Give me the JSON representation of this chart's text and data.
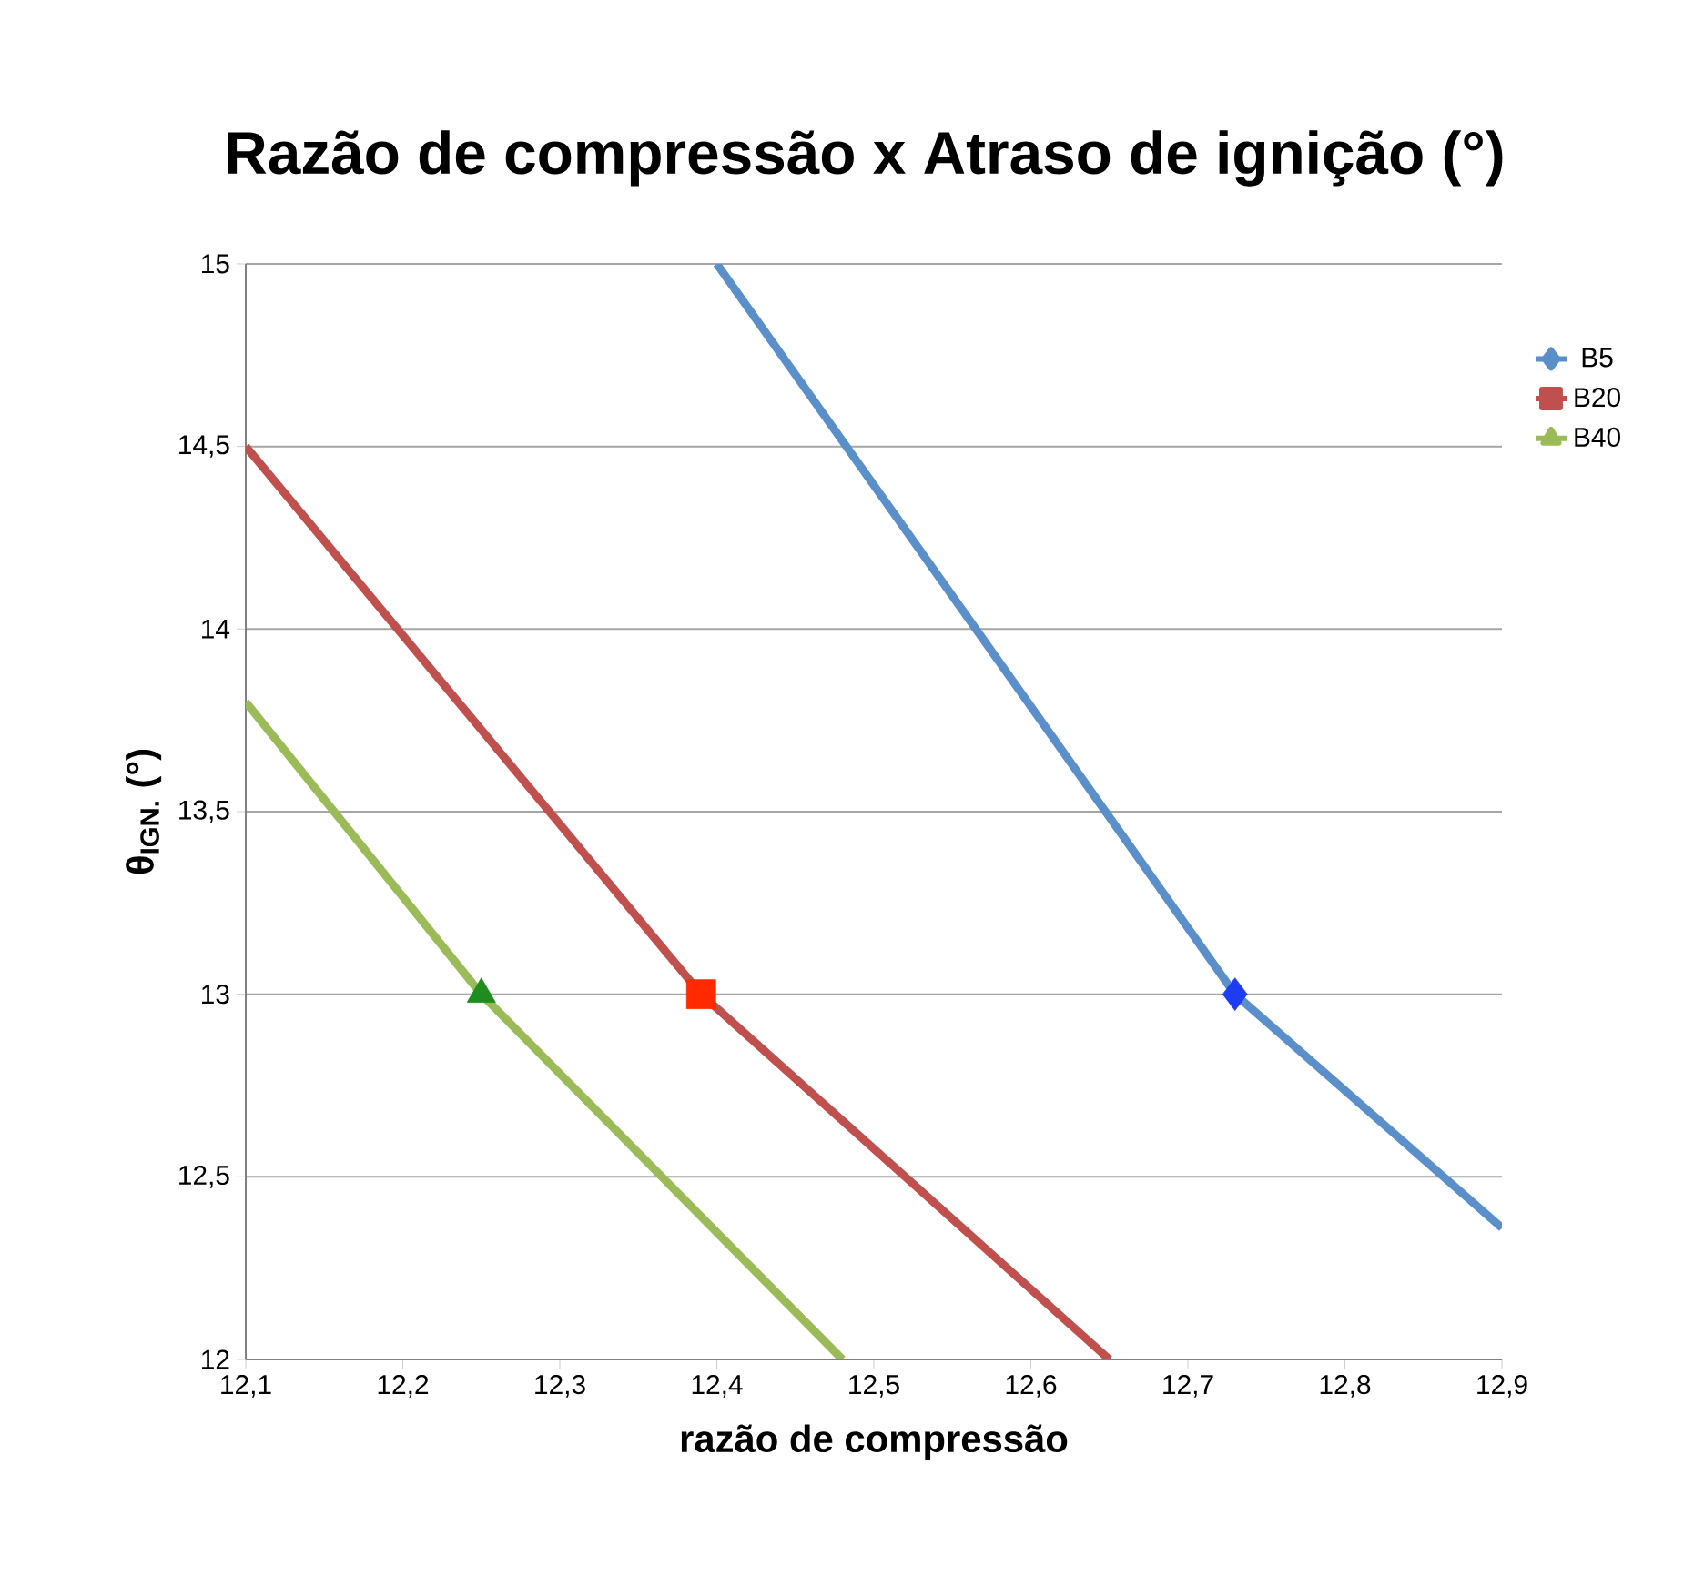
{
  "chart_data": {
    "type": "line",
    "title": "Razão de compressão x Atraso de ignição (°)",
    "xlabel": "razão de compressão",
    "ylabel": "θ$_{IGN.}$ (°)",
    "xlim": [
      12.1,
      12.9
    ],
    "xticks": [
      {
        "value": 12.1,
        "label": "12,1"
      },
      {
        "value": 12.2,
        "label": "12,2"
      },
      {
        "value": 12.3,
        "label": "12,3"
      },
      {
        "value": 12.4,
        "label": "12,4"
      },
      {
        "value": 12.5,
        "label": "12,5"
      },
      {
        "value": 12.6,
        "label": "12,6"
      },
      {
        "value": 12.7,
        "label": "12,7"
      },
      {
        "value": 12.8,
        "label": "12,8"
      },
      {
        "value": 12.9,
        "label": "12,9"
      }
    ],
    "ylim": [
      12,
      15
    ],
    "yticks": [
      12,
      {
        "value": 12.5,
        "label": "12,5"
      },
      13,
      {
        "value": 13.5,
        "label": "13,5"
      },
      14,
      {
        "value": 14.5,
        "label": "14,5"
      },
      15
    ],
    "grid": "y",
    "legend": "right",
    "line_style": "solid",
    "series": [
      {
        "name": "B5",
        "color": "#5b8fc9",
        "x": [
          12.4,
          12.73,
          12.9
        ],
        "values": [
          15,
          13,
          12.36
        ]
      },
      {
        "name": "B20",
        "color": "#c0504d",
        "x": [
          12.1,
          12.39,
          12.65
        ],
        "values": [
          14.5,
          13,
          12
        ]
      },
      {
        "name": "B40",
        "color": "#9bbb59",
        "x": [
          12.1,
          12.25,
          12.48
        ],
        "values": [
          13.8,
          13,
          12
        ]
      },
      {
        "type": "scatter",
        "color": "#1f3cf5",
        "marker": "diamond",
        "x": [
          12.73
        ],
        "values": [
          13
        ]
      },
      {
        "type": "scatter",
        "color": "#ff2a00",
        "marker": "square",
        "x": [
          12.39
        ],
        "values": [
          13
        ]
      },
      {
        "type": "scatter",
        "color": "#1e8c1e",
        "marker": "triangle",
        "x": [
          12.25
        ],
        "values": [
          13
        ]
      }
    ]
  }
}
